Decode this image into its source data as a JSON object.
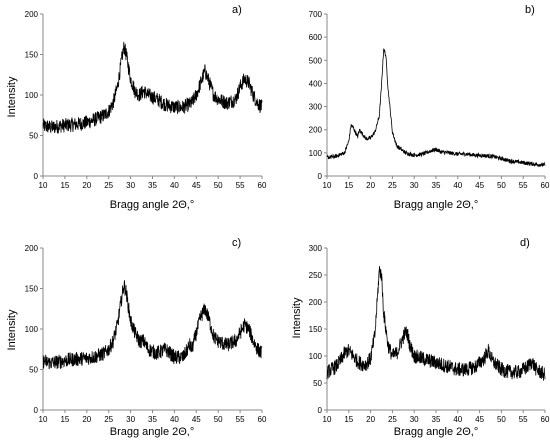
{
  "chart_data": [
    {
      "type": "line",
      "label": "a)",
      "xlabel": "Bragg angle 2Θ,°",
      "ylabel": "Intensity",
      "xlim": [
        10,
        60
      ],
      "ylim": [
        0,
        200
      ],
      "xticks": [
        10,
        15,
        20,
        25,
        30,
        35,
        40,
        45,
        50,
        55,
        60
      ],
      "yticks": [
        0,
        50,
        100,
        150,
        200
      ],
      "grid": false,
      "color": "#000000",
      "series": [
        {
          "x": [
            10,
            12,
            14,
            16,
            18,
            20,
            22,
            24,
            25,
            26,
            27,
            28,
            28.5,
            29,
            30,
            31,
            32,
            33,
            34,
            36,
            38,
            40,
            42,
            44,
            45,
            46,
            47,
            48,
            49,
            50,
            52,
            54,
            55,
            56,
            57,
            58,
            59,
            60
          ],
          "values": [
            62,
            60,
            62,
            63,
            64,
            66,
            70,
            75,
            80,
            90,
            110,
            145,
            160,
            150,
            120,
            105,
            100,
            105,
            100,
            95,
            88,
            85,
            85,
            90,
            100,
            115,
            130,
            115,
            100,
            95,
            90,
            95,
            110,
            120,
            115,
            100,
            90,
            85
          ]
        }
      ]
    },
    {
      "type": "line",
      "label": "b)",
      "xlabel": "Bragg angle 2Θ,°",
      "ylabel": "",
      "xlim": [
        10,
        60
      ],
      "ylim": [
        0,
        700
      ],
      "xticks": [
        10,
        15,
        20,
        25,
        30,
        35,
        40,
        45,
        50,
        55,
        60
      ],
      "yticks": [
        0,
        100,
        200,
        300,
        400,
        500,
        600,
        700
      ],
      "grid": false,
      "color": "#000000",
      "series": [
        {
          "x": [
            10,
            12,
            14,
            15,
            15.5,
            16,
            17,
            17.5,
            18,
            19,
            20,
            21,
            22,
            22.5,
            23,
            23.5,
            24,
            25,
            26,
            28,
            30,
            32,
            34,
            35,
            36,
            38,
            40,
            42,
            44,
            46,
            48,
            50,
            52,
            54,
            56,
            58,
            60
          ],
          "values": [
            80,
            85,
            100,
            150,
            220,
            210,
            170,
            200,
            185,
            160,
            165,
            190,
            260,
            390,
            550,
            520,
            380,
            190,
            130,
            100,
            90,
            95,
            110,
            115,
            105,
            100,
            95,
            95,
            90,
            88,
            85,
            75,
            65,
            60,
            55,
            50,
            48
          ]
        }
      ]
    },
    {
      "type": "line",
      "label": "c)",
      "xlabel": "Bragg angle 2Θ,°",
      "ylabel": "Intensity",
      "xlim": [
        10,
        60
      ],
      "ylim": [
        0,
        200
      ],
      "xticks": [
        10,
        15,
        20,
        25,
        30,
        35,
        40,
        45,
        50,
        55,
        60
      ],
      "yticks": [
        0,
        50,
        100,
        150,
        200
      ],
      "grid": false,
      "color": "#000000",
      "series": [
        {
          "x": [
            10,
            12,
            14,
            16,
            18,
            20,
            22,
            24,
            25,
            26,
            27,
            28,
            28.5,
            29,
            30,
            31,
            32,
            33,
            34,
            36,
            38,
            40,
            42,
            43.5,
            44,
            45,
            46,
            47,
            48,
            49,
            50,
            52,
            54,
            55,
            56,
            57,
            58,
            59,
            60
          ],
          "values": [
            60,
            58,
            60,
            62,
            63,
            64,
            66,
            70,
            75,
            85,
            105,
            140,
            155,
            145,
            110,
            95,
            85,
            85,
            75,
            70,
            75,
            65,
            65,
            80,
            75,
            95,
            115,
            125,
            110,
            90,
            85,
            80,
            85,
            95,
            105,
            100,
            85,
            75,
            70
          ]
        }
      ]
    },
    {
      "type": "line",
      "label": "d)",
      "xlabel": "Bragg angle 2Θ,°",
      "ylabel": "Intensity",
      "xlim": [
        10,
        60
      ],
      "ylim": [
        0,
        300
      ],
      "xticks": [
        10,
        15,
        20,
        25,
        30,
        35,
        40,
        45,
        50,
        55,
        60
      ],
      "yticks": [
        0,
        50,
        100,
        150,
        200,
        250,
        300
      ],
      "grid": false,
      "color": "#000000",
      "series": [
        {
          "x": [
            10,
            12,
            13,
            14,
            15,
            16,
            17,
            18,
            19,
            20,
            21,
            21.5,
            22,
            22.5,
            23,
            24,
            25,
            26,
            27,
            28,
            28.5,
            29,
            30,
            32,
            34,
            36,
            38,
            40,
            42,
            44,
            46,
            47,
            48,
            50,
            52,
            54,
            56,
            57,
            58,
            60
          ],
          "values": [
            70,
            80,
            90,
            105,
            110,
            100,
            90,
            85,
            85,
            95,
            140,
            200,
            260,
            250,
            180,
            120,
            100,
            105,
            125,
            145,
            140,
            120,
            100,
            95,
            90,
            85,
            80,
            75,
            75,
            80,
            95,
            110,
            90,
            75,
            70,
            70,
            80,
            90,
            75,
            65
          ]
        }
      ]
    }
  ]
}
